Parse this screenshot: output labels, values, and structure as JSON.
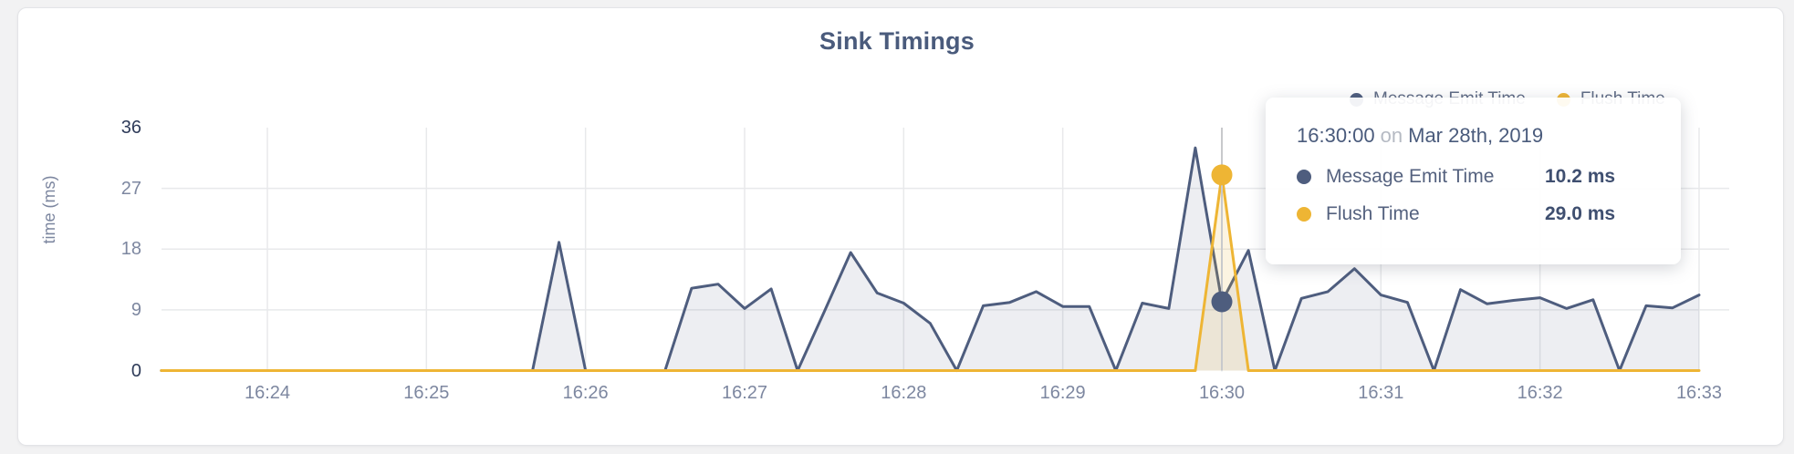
{
  "panel": {
    "title": "Sink Timings"
  },
  "legend": {
    "items": [
      {
        "label": "Message Emit Time",
        "color": "#4e5d7e"
      },
      {
        "label": "Flush Time",
        "color": "#eeb534"
      }
    ]
  },
  "tooltip": {
    "time": "16:30:00",
    "on_word": "on",
    "date": "Mar 28th, 2019",
    "rows": [
      {
        "label": "Message Emit Time",
        "value": "10.2 ms",
        "color": "#4e5d7e"
      },
      {
        "label": "Flush Time",
        "value": "29.0 ms",
        "color": "#eeb534"
      }
    ]
  },
  "chart_data": {
    "type": "area",
    "title": "Sink Timings",
    "xlabel": "",
    "ylabel": "time (ms)",
    "ylim": [
      0,
      36
    ],
    "yticks": [
      36,
      27,
      18,
      9,
      0
    ],
    "xticks": [
      "16:24",
      "16:25",
      "16:26",
      "16:27",
      "16:28",
      "16:29",
      "16:30",
      "16:31",
      "16:32",
      "16:33"
    ],
    "x_start": "16:23:20",
    "x_interval_seconds": 10,
    "grid": true,
    "legend_position": "top-right",
    "series": [
      {
        "name": "Message Emit Time",
        "color": "#4e5d7e",
        "fill": "rgba(78,93,126,0.10)",
        "values": [
          0,
          0,
          0,
          0,
          0,
          0,
          0,
          0,
          0,
          0,
          0,
          0,
          0,
          0,
          0,
          19,
          0,
          0,
          0,
          0,
          12.2,
          12.8,
          9.2,
          12.1,
          0,
          8.7,
          17.5,
          11.5,
          10,
          7,
          0,
          9.6,
          10.1,
          11.7,
          9.5,
          9.5,
          0,
          10,
          9.2,
          33,
          10.2,
          17.8,
          0,
          10.7,
          11.7,
          15.1,
          11.2,
          10.1,
          0,
          12,
          9.9,
          10.4,
          10.8,
          9.2,
          10.5,
          0,
          9.6,
          9.3,
          11.2
        ]
      },
      {
        "name": "Flush Time",
        "color": "#eeb534",
        "fill": "rgba(238,181,52,0.15)",
        "values": [
          0,
          0,
          0,
          0,
          0,
          0,
          0,
          0,
          0,
          0,
          0,
          0,
          0,
          0,
          0,
          0,
          0,
          0,
          0,
          0,
          0,
          0,
          0,
          0,
          0,
          0,
          0,
          0,
          0,
          0,
          0,
          0,
          0,
          0,
          0,
          0,
          0,
          0,
          0,
          0,
          29,
          0,
          0,
          0,
          0,
          0,
          0,
          0,
          0,
          0,
          0,
          0,
          0,
          0,
          0,
          0,
          0,
          0,
          0
        ]
      }
    ],
    "hover": {
      "index": 40,
      "time": "16:30:00",
      "date": "Mar 28th, 2019",
      "values": [
        10.2,
        29.0
      ]
    }
  }
}
